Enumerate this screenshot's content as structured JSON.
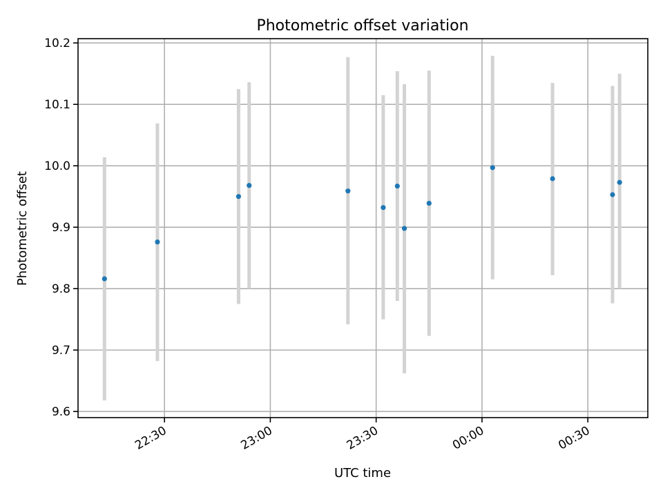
{
  "chart_data": {
    "type": "scatter",
    "title": "Photometric offset variation",
    "xlabel": "UTC time",
    "ylabel": "Photometric offset",
    "x_ticks": [
      "22:30",
      "23:00",
      "23:30",
      "00:00",
      "00:30"
    ],
    "y_ticks": [
      "9.6",
      "9.7",
      "9.8",
      "9.9",
      "10.0",
      "10.1",
      "10.2"
    ],
    "ylim": [
      9.59,
      10.207
    ],
    "xlim": [
      "22:05:30",
      "00:47:00"
    ],
    "grid": true,
    "colors": {
      "point": "#1f77b4",
      "errorbar": "#d3d3d3"
    },
    "points": [
      {
        "x": "22:13",
        "y": 9.816,
        "err_low": 9.618,
        "err_high": 10.014
      },
      {
        "x": "22:28",
        "y": 9.876,
        "err_low": 9.682,
        "err_high": 10.069
      },
      {
        "x": "22:51",
        "y": 9.95,
        "err_low": 9.775,
        "err_high": 10.125
      },
      {
        "x": "22:54",
        "y": 9.968,
        "err_low": 9.8,
        "err_high": 10.136
      },
      {
        "x": "23:22",
        "y": 9.959,
        "err_low": 9.742,
        "err_high": 10.177
      },
      {
        "x": "23:32",
        "y": 9.932,
        "err_low": 9.75,
        "err_high": 10.115
      },
      {
        "x": "23:36",
        "y": 9.967,
        "err_low": 9.78,
        "err_high": 10.154
      },
      {
        "x": "23:38",
        "y": 9.898,
        "err_low": 9.662,
        "err_high": 10.133
      },
      {
        "x": "23:45",
        "y": 9.939,
        "err_low": 9.723,
        "err_high": 10.155
      },
      {
        "x": "00:03",
        "y": 9.997,
        "err_low": 9.815,
        "err_high": 10.179
      },
      {
        "x": "00:20",
        "y": 9.979,
        "err_low": 9.822,
        "err_high": 10.135
      },
      {
        "x": "00:37",
        "y": 9.953,
        "err_low": 9.776,
        "err_high": 10.13
      },
      {
        "x": "00:39",
        "y": 9.973,
        "err_low": 9.8,
        "err_high": 10.15
      }
    ]
  }
}
